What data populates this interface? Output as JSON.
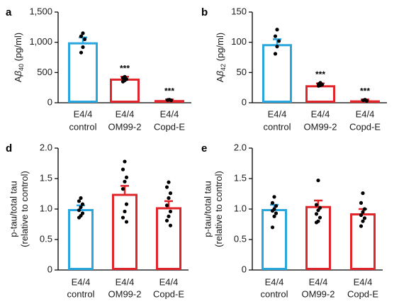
{
  "colors": {
    "control": "#29a6de",
    "treated": "#e0252b",
    "axis": "#000000",
    "dot": "#000000"
  },
  "chart_data": [
    {
      "panel": "a",
      "type": "bar",
      "categories": [
        [
          "E4/4",
          "control"
        ],
        [
          "E4/4",
          "OM99-2"
        ],
        [
          "E4/4",
          "Copd-E"
        ]
      ],
      "ylabel_prefix": "A",
      "ylabel_greek": "β",
      "ylabel_sub": "40",
      "ylabel_suffix": " (pg/ml)",
      "ylim": [
        0,
        1500
      ],
      "yticks": [
        0,
        500,
        1000,
        1500
      ],
      "ytick_labels": [
        "0",
        "500",
        "1,000",
        "1,500"
      ],
      "values": [
        1000,
        400,
        45
      ],
      "errors": [
        80,
        30,
        10
      ],
      "points": [
        [
          1150,
          1100,
          1050,
          920,
          830
        ],
        [
          430,
          410,
          390,
          370,
          350
        ],
        [
          50,
          45,
          40
        ]
      ],
      "significance": [
        "",
        "***",
        "***"
      ]
    },
    {
      "panel": "b",
      "type": "bar",
      "categories": [
        [
          "E4/4",
          "control"
        ],
        [
          "E4/4",
          "OM99-2"
        ],
        [
          "E4/4",
          "Copd-E"
        ]
      ],
      "ylabel_prefix": "A",
      "ylabel_greek": "β",
      "ylabel_sub": "42",
      "ylabel_suffix": " (pg/ml)",
      "ylim": [
        0,
        150
      ],
      "yticks": [
        0,
        50,
        100,
        150
      ],
      "ytick_labels": [
        "0",
        "50",
        "100",
        "150"
      ],
      "values": [
        97,
        29,
        4
      ],
      "errors": [
        8,
        3,
        1.5
      ],
      "points": [
        [
          121,
          110,
          102,
          93,
          81
        ],
        [
          33,
          31,
          30,
          29,
          28
        ],
        [
          5,
          4,
          3
        ]
      ],
      "significance": [
        "",
        "***",
        "***"
      ]
    },
    {
      "panel": "d",
      "type": "bar",
      "categories": [
        [
          "E4/4",
          "control"
        ],
        [
          "E4/4",
          "OM99-2"
        ],
        [
          "E4/4",
          "Copd-E"
        ]
      ],
      "ylabel_lines": [
        "p-tau/total tau",
        "(relative to control)"
      ],
      "ylim": [
        0,
        2.0
      ],
      "yticks": [
        0,
        0.5,
        1.0,
        1.5,
        2.0
      ],
      "ytick_labels": [
        "0",
        "0.5",
        "1.0",
        "1.5",
        "2.0"
      ],
      "values": [
        1.0,
        1.25,
        1.03
      ],
      "errors": [
        0.06,
        0.13,
        0.1
      ],
      "points": [
        [
          1.18,
          1.13,
          1.08,
          1.03,
          0.98,
          0.93,
          0.89,
          0.86
        ],
        [
          1.78,
          1.65,
          1.52,
          1.45,
          1.33,
          1.08,
          0.96,
          0.86,
          0.79
        ],
        [
          1.44,
          1.36,
          1.26,
          1.18,
          1.06,
          0.96,
          0.88,
          0.81,
          0.73
        ]
      ],
      "significance": [
        "",
        "",
        ""
      ]
    },
    {
      "panel": "e",
      "type": "bar",
      "categories": [
        [
          "E4/4",
          "control"
        ],
        [
          "E4/4",
          "OM99-2"
        ],
        [
          "E4/4",
          "Copd-E"
        ]
      ],
      "ylabel_lines": [
        "p-tau/total tau",
        "(relative to control)"
      ],
      "ylim": [
        0,
        2.0
      ],
      "yticks": [
        0,
        0.5,
        1.0,
        1.5,
        2.0
      ],
      "ytick_labels": [
        "0",
        "0.5",
        "1.0",
        "1.5",
        "2.0"
      ],
      "values": [
        1.0,
        1.05,
        0.93
      ],
      "errors": [
        0.07,
        0.09,
        0.07
      ],
      "points": [
        [
          1.2,
          1.1,
          1.05,
          1.0,
          0.97,
          0.93,
          0.88,
          0.7
        ],
        [
          1.47,
          1.07,
          1.02,
          0.98,
          0.92,
          0.86,
          0.8,
          0.78
        ],
        [
          1.26,
          1.1,
          1.0,
          0.95,
          0.9,
          0.85,
          0.8,
          0.72
        ]
      ],
      "significance": [
        "",
        "",
        ""
      ]
    }
  ]
}
